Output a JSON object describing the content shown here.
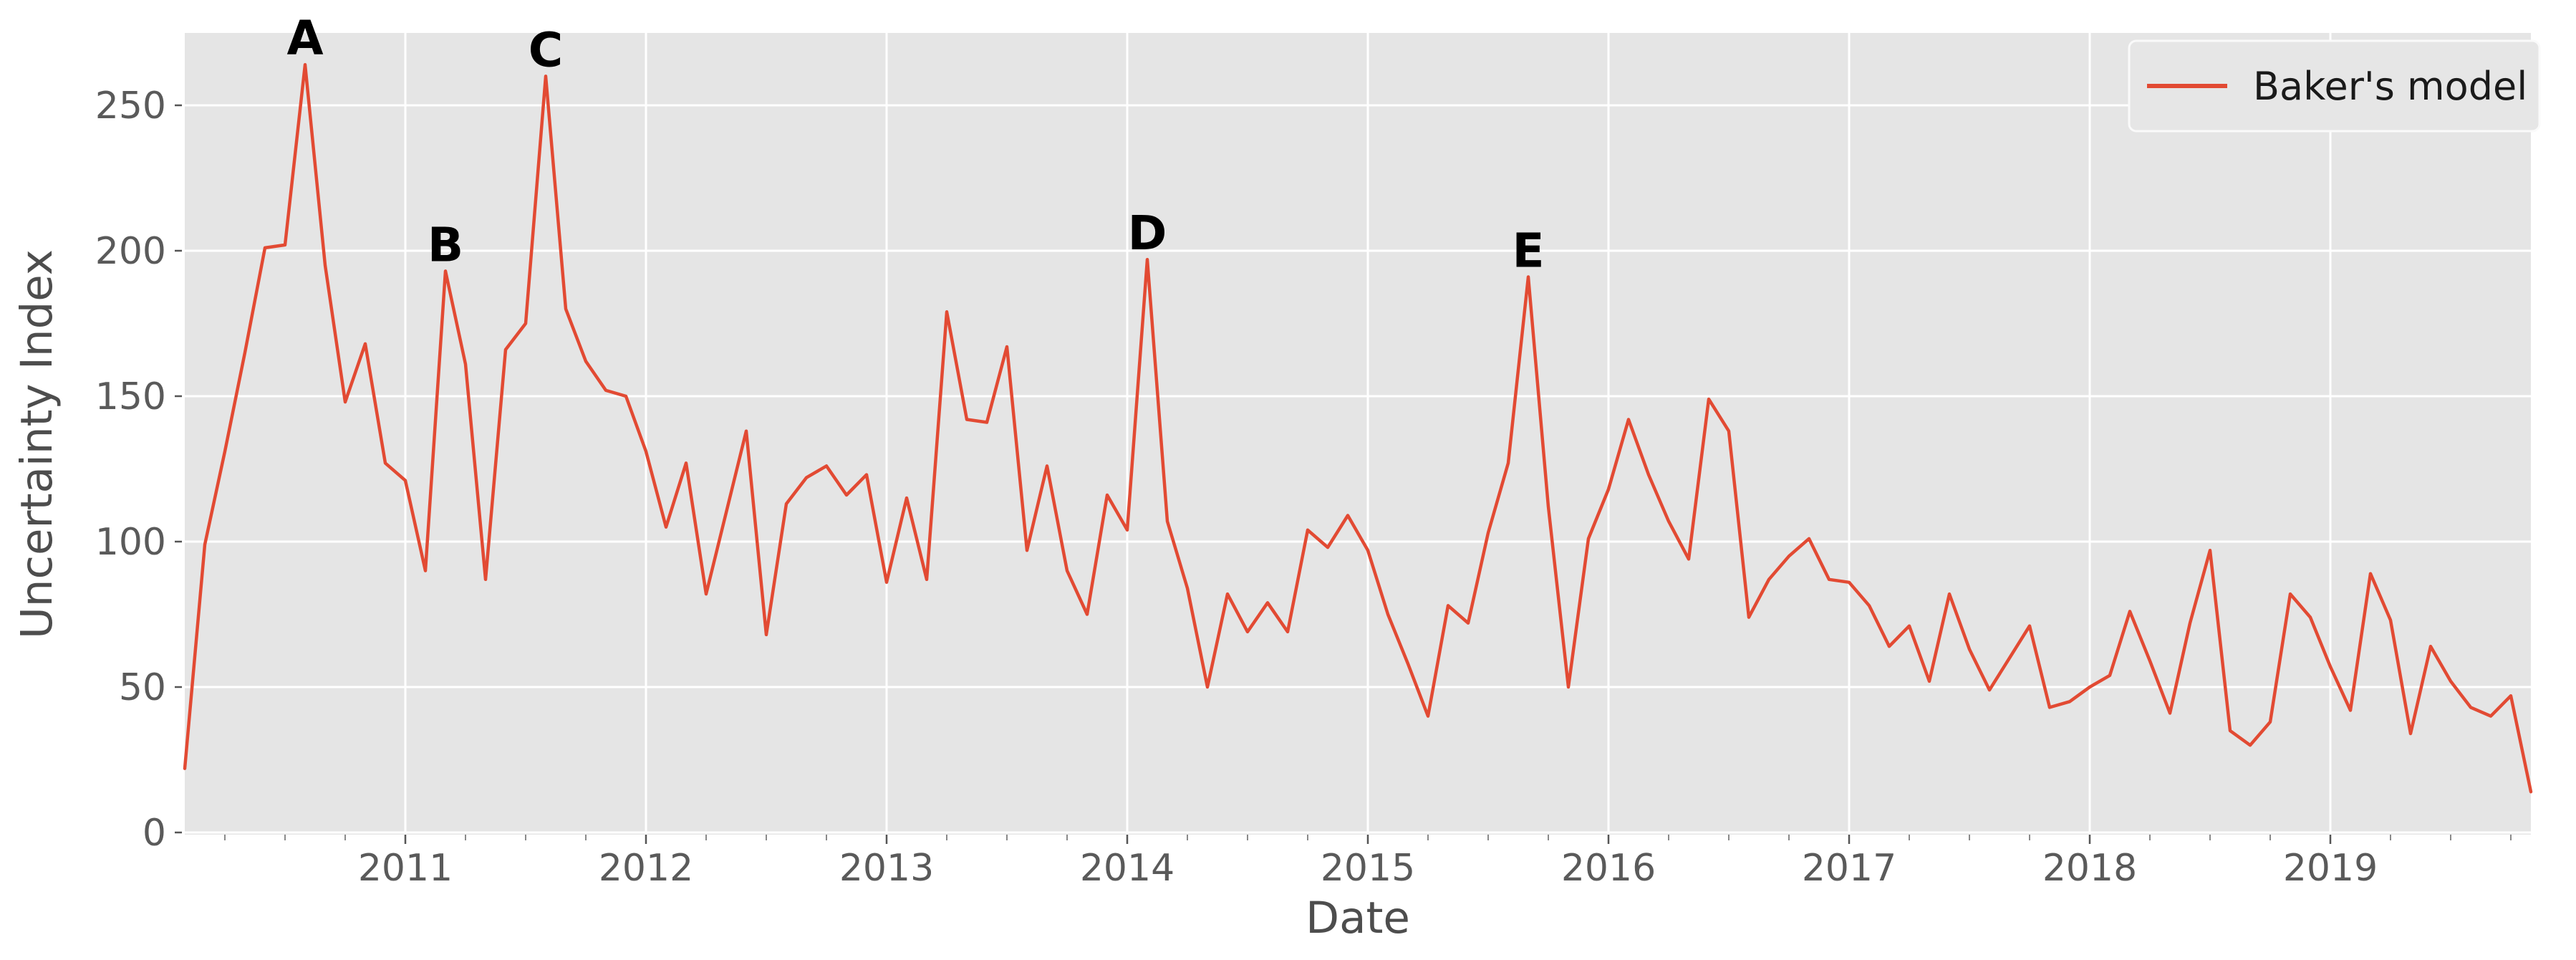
{
  "chart_data": {
    "type": "line",
    "title": "",
    "xlabel": "Date",
    "ylabel": "Uncertainty Index",
    "frequency": "monthly",
    "x_start": "2010-02",
    "x_end": "2019-11",
    "x_tick_years": [
      2011,
      2012,
      2013,
      2014,
      2015,
      2016,
      2017,
      2018,
      2019
    ],
    "y_ticks": [
      0,
      50,
      100,
      150,
      200,
      250
    ],
    "ylim": [
      0,
      275
    ],
    "grid": true,
    "legend_position": "upper right",
    "plot_bg_color": "#E5E5E5",
    "grid_color": "#FFFFFF",
    "tick_color": "#555555",
    "minor_tick_color": "#8a8a8a",
    "legend": {
      "label": "Baker's model"
    },
    "series": [
      {
        "name": "Baker's model",
        "color": "#E24A33",
        "values": [
          22,
          99,
          131,
          165,
          201,
          202,
          264,
          195,
          148,
          168,
          127,
          121,
          90,
          193,
          161,
          87,
          166,
          175,
          260,
          180,
          162,
          152,
          150,
          131,
          105,
          127,
          82,
          110,
          138,
          68,
          113,
          122,
          126,
          116,
          123,
          86,
          115,
          87,
          179,
          142,
          141,
          167,
          97,
          126,
          90,
          75,
          116,
          104,
          197,
          107,
          84,
          50,
          82,
          69,
          79,
          69,
          104,
          98,
          109,
          97,
          75,
          58,
          40,
          78,
          72,
          103,
          127,
          191,
          112,
          50,
          101,
          118,
          142,
          123,
          107,
          94,
          149,
          138,
          74,
          87,
          95,
          101,
          87,
          86,
          78,
          64,
          71,
          52,
          82,
          63,
          49,
          60,
          71,
          43,
          45,
          50,
          54,
          76,
          59,
          41,
          72,
          97,
          35,
          30,
          38,
          82,
          74,
          57,
          42,
          89,
          73,
          34,
          64,
          52,
          43,
          40,
          47,
          14
        ]
      }
    ],
    "annotations": [
      {
        "label": "A",
        "month": "2010-08",
        "value": 264
      },
      {
        "label": "B",
        "month": "2011-03",
        "value": 193
      },
      {
        "label": "C",
        "month": "2011-08",
        "value": 260
      },
      {
        "label": "D",
        "month": "2014-02",
        "value": 197
      },
      {
        "label": "E",
        "month": "2015-09",
        "value": 191
      }
    ]
  }
}
